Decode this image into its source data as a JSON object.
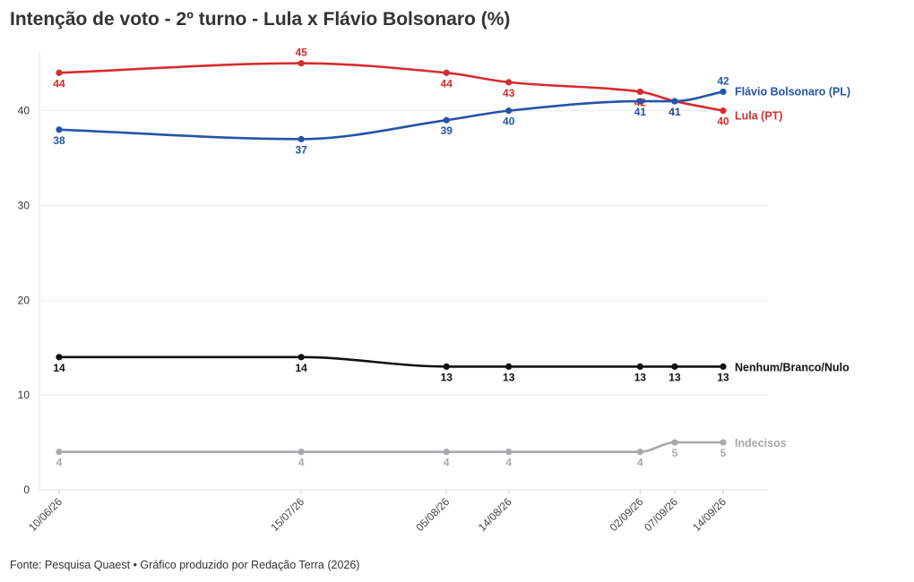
{
  "title": "Intenção de voto - 2º turno - Lula x Flávio Bolsonaro (%)",
  "source": "Fonte: Pesquisa Quaest • Gráfico produzido por Redação Terra (2026)",
  "chart_data": {
    "type": "line",
    "title": "Intenção de voto - 2º turno - Lula x Flávio Bolsonaro (%)",
    "x": [
      "2026-06-10",
      "2026-07-15",
      "2026-08-05",
      "2026-08-14",
      "2026-09-02",
      "2026-09-07",
      "2026-09-14"
    ],
    "x_labels": [
      "10/06/26",
      "15/07/26",
      "05/08/26",
      "14/08/26",
      "02/09/26",
      "07/09/26",
      "14/09/26"
    ],
    "ylim": [
      0,
      45
    ],
    "y_ticks": [
      0,
      10,
      20,
      30,
      40
    ],
    "grid": true,
    "legend": "direct labels at right end of lines",
    "series": [
      {
        "name": "Lula (PT)",
        "color": "#d62c2f",
        "values": [
          44,
          45,
          44,
          43,
          42,
          41,
          40
        ]
      },
      {
        "name": "Flávio Bolsonaro (PL)",
        "color": "#2554a8",
        "values": [
          38,
          37,
          39,
          40,
          41,
          41,
          42
        ]
      },
      {
        "name": "Nenhum/Branco/Nulo",
        "color": "#111111",
        "values": [
          14,
          14,
          13,
          13,
          13,
          13,
          13
        ]
      },
      {
        "name": "Indecisos",
        "color": "#a9a9ad",
        "values": [
          4,
          4,
          4,
          4,
          4,
          5,
          5
        ]
      }
    ]
  }
}
